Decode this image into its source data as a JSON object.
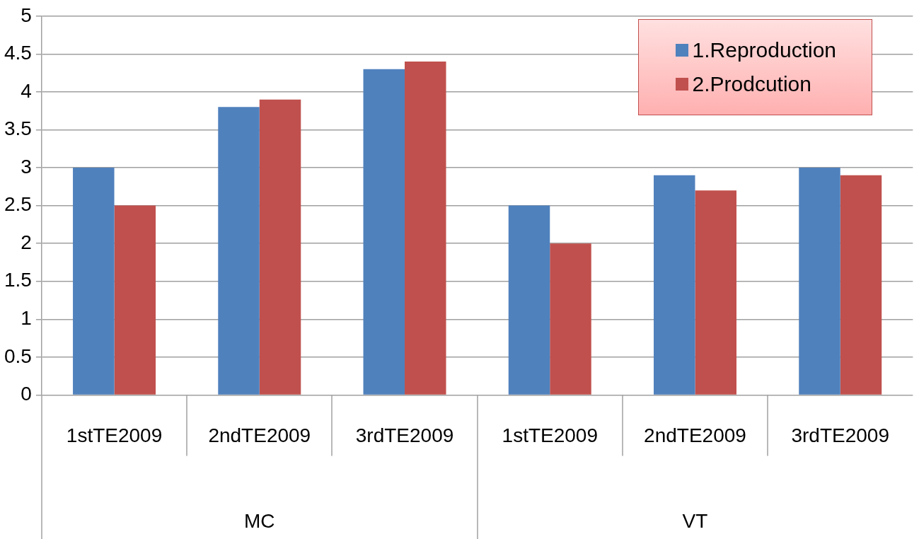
{
  "chart_data": {
    "type": "bar",
    "categories": [
      "1stTE2009",
      "2ndTE2009",
      "3rdTE2009",
      "1stTE2009",
      "2ndTE2009",
      "3rdTE2009"
    ],
    "series": [
      {
        "name": "1.Reproduction",
        "color": "#4f81bd",
        "values": [
          3.0,
          3.8,
          4.3,
          2.5,
          2.9,
          3.0
        ]
      },
      {
        "name": "2.Prodcution",
        "color": "#c0504d",
        "values": [
          2.5,
          3.9,
          4.4,
          2.0,
          2.7,
          2.9
        ]
      }
    ],
    "annotations": [
      "MC",
      "VT"
    ],
    "ylim": [
      0,
      5
    ],
    "yticks": [
      0,
      0.5,
      1,
      1.5,
      2,
      2.5,
      3,
      3.5,
      4,
      4.5,
      5
    ],
    "grid": "y",
    "legend": "top right"
  }
}
